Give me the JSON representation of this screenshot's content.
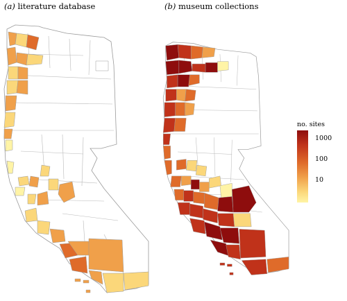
{
  "panels": [
    {
      "letter": "(a)",
      "title": "literature database"
    },
    {
      "letter": "(b)",
      "title": "museum collections"
    }
  ],
  "legend": {
    "title": "no. sites",
    "labels": [
      "1000",
      "100",
      "10"
    ],
    "scale": "log",
    "colors": [
      "#fff4a6",
      "#fbd77a",
      "#f0a04a",
      "#df6b2a",
      "#c0321a",
      "#8e0d0d"
    ]
  },
  "colors": {
    "missing": "#ffffff",
    "border": "#9a9a9a"
  }
}
